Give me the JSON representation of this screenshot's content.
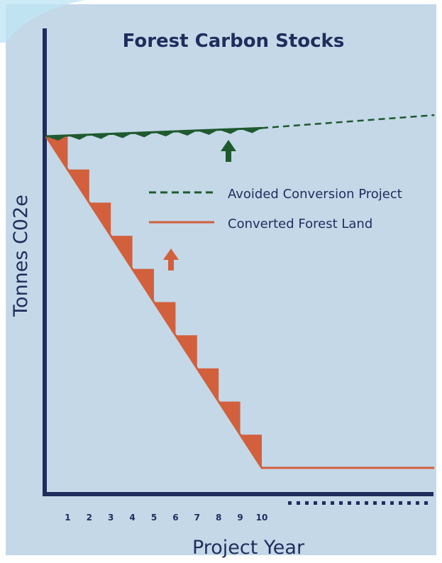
{
  "colors": {
    "panel_bg": "#c4d8e8",
    "axis": "#1f2d5c",
    "text": "#1f2d5c",
    "converted": "#d2603c",
    "avoided": "#1e5a2e",
    "ellipsis": "#1f2d5c"
  },
  "chart_data": {
    "type": "line",
    "title": "Forest Carbon Stocks",
    "xlabel": "Project Year",
    "ylabel": "Tonnes C02e",
    "categories": [
      "1",
      "2",
      "3",
      "4",
      "5",
      "6",
      "7",
      "8",
      "9",
      "10"
    ],
    "x_continues": true,
    "series": [
      {
        "name": "Avoided Conversion Project",
        "style": "dashed",
        "color": "#1e5a2e",
        "x": [
          0,
          10,
          18
        ],
        "y": [
          100,
          102.5,
          106.4
        ]
      },
      {
        "name": "Converted Forest Land",
        "style": "solid",
        "color": "#d2603c",
        "x": [
          0,
          10,
          18
        ],
        "y": [
          100,
          0,
          0
        ]
      }
    ],
    "arrows": [
      {
        "series": "Avoided Conversion Project",
        "direction": "up",
        "color": "#1e5a2e"
      },
      {
        "series": "Converted Forest Land",
        "direction": "up",
        "color": "#d2603c"
      }
    ],
    "grid": false,
    "legend_position": "center-right"
  }
}
